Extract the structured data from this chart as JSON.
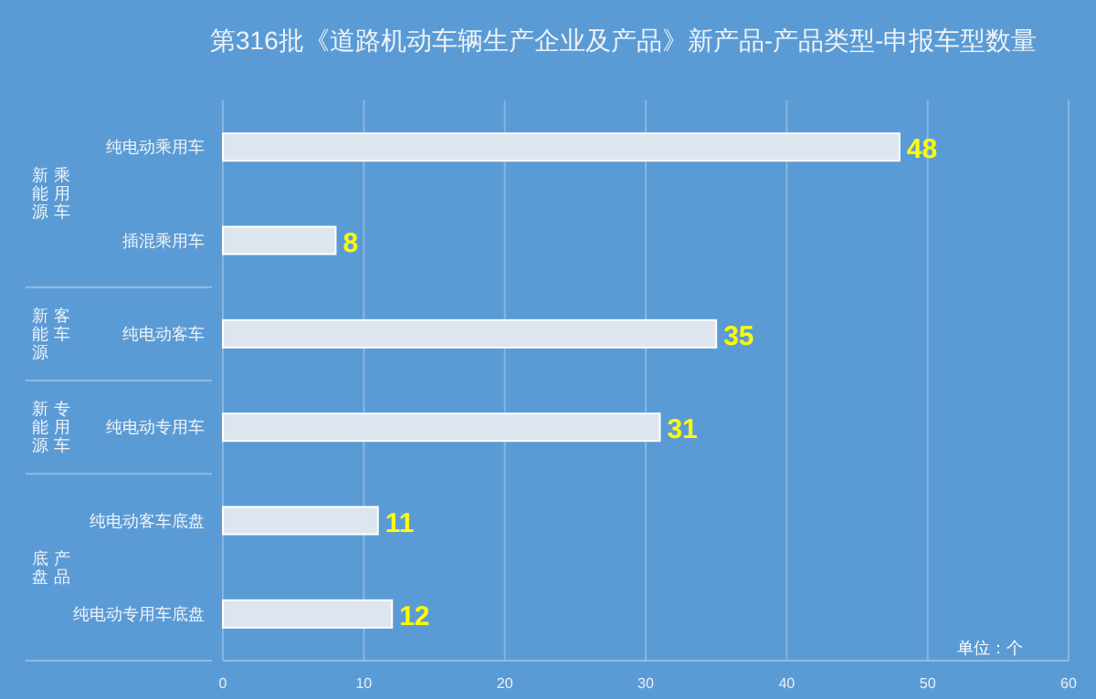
{
  "chart_data": {
    "type": "bar",
    "orientation": "horizontal",
    "title": "第316批《道路机动车辆生产企业及产品》新产品-产品类型-申报车型数量",
    "categories": [
      "纯电动乘用车",
      "插混乘用车",
      "纯电动客车",
      "纯电动专用车",
      "纯电动客车底盘",
      "纯电动专用车底盘"
    ],
    "values": [
      48,
      8,
      35,
      31,
      11,
      12
    ],
    "color": "#dde5ee",
    "data_labels": true,
    "xlim": [
      0,
      60
    ],
    "xticks": [
      0,
      10,
      20,
      30,
      40,
      50,
      60
    ],
    "grid": "x",
    "annotations": [
      "新能源乘用车",
      "新能源客车",
      "新能源专用车",
      "底盘产品",
      "单位：个"
    ]
  }
}
